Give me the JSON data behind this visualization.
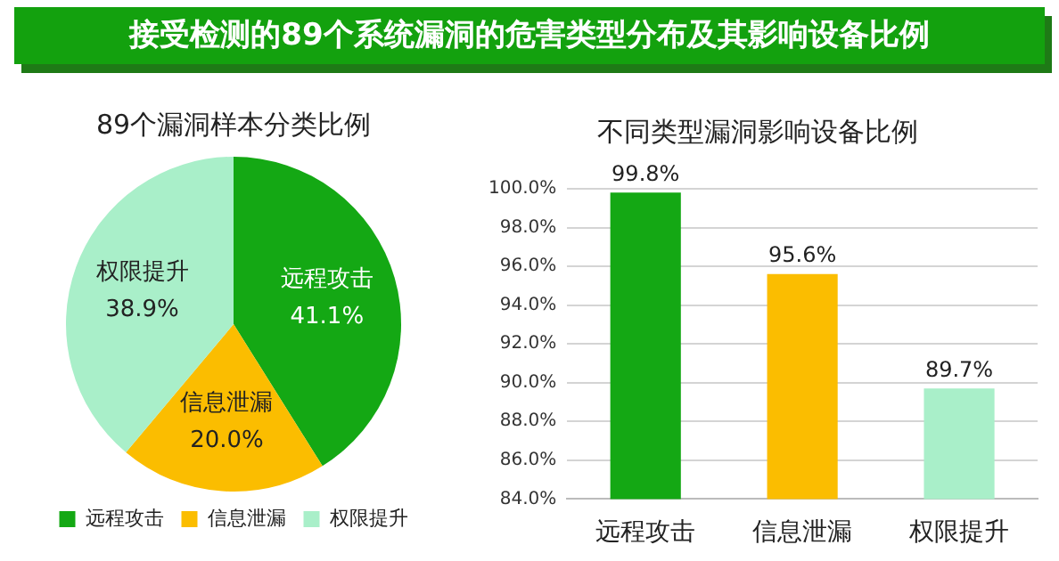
{
  "chart_data": [
    {
      "type": "pie",
      "title": "接受检测的89个系统漏洞的危害类型分布及其影响设备比例",
      "subtitle": "89个漏洞样本分类比例",
      "categories": [
        "远程攻击",
        "信息泄漏",
        "权限提升"
      ],
      "values": [
        41.1,
        20.0,
        38.9
      ],
      "value_labels": [
        "41.1%",
        "20.0%",
        "38.9%"
      ],
      "colors": [
        "#14a814",
        "#fbbd00",
        "#a9efc9"
      ],
      "legend": "bottom"
    },
    {
      "type": "bar",
      "title": "不同类型漏洞影响设备比例",
      "categories": [
        "远程攻击",
        "信息泄漏",
        "权限提升"
      ],
      "values": [
        99.8,
        95.6,
        89.7
      ],
      "value_labels": [
        "99.8%",
        "95.6%",
        "89.7%"
      ],
      "colors": [
        "#14a814",
        "#fbbd00",
        "#a9efc9"
      ],
      "ylim": [
        84,
        100
      ],
      "yticks": [
        {
          "value": 84,
          "label": "84.0%"
        },
        {
          "value": 86,
          "label": "86.0%"
        },
        {
          "value": 88,
          "label": "88.0%"
        },
        {
          "value": 90,
          "label": "90.0%"
        },
        {
          "value": 92,
          "label": "92.0%"
        },
        {
          "value": 94,
          "label": "94.0%"
        },
        {
          "value": 96,
          "label": "96.0%"
        },
        {
          "value": 98,
          "label": "98.0%"
        },
        {
          "value": 100,
          "label": "100.0%"
        }
      ],
      "grid": "y",
      "legend": false
    }
  ]
}
